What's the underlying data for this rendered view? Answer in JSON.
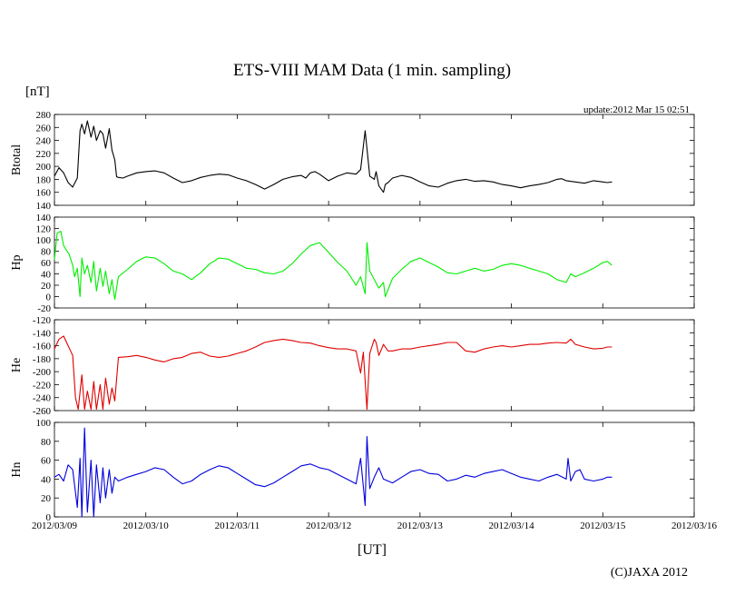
{
  "chart_data": {
    "type": "line",
    "title": "ETS-VIII MAM Data (1 min. sampling)",
    "unit_label": "[nT]",
    "update_label": "update:2012 Mar 15 02:51",
    "xlabel": "[UT]",
    "copyright": "(C)JAXA 2012",
    "x_ticks": [
      "2012/03/09",
      "2012/03/10",
      "2012/03/11",
      "2012/03/12",
      "2012/03/13",
      "2012/03/14",
      "2012/03/15",
      "2012/03/16"
    ],
    "xlim_days": [
      0,
      7
    ],
    "grid": false,
    "panels": [
      {
        "name": "Btotal",
        "ylabel": "Btotal",
        "color": "#000000",
        "ylim": [
          140,
          280
        ],
        "yticks": [
          140,
          160,
          180,
          200,
          220,
          240,
          260,
          280
        ],
        "yticks_reversed": false,
        "x_days": [
          0,
          0.05,
          0.1,
          0.15,
          0.2,
          0.25,
          0.28,
          0.3,
          0.33,
          0.36,
          0.4,
          0.43,
          0.46,
          0.5,
          0.53,
          0.56,
          0.6,
          0.63,
          0.66,
          0.68,
          0.7,
          0.75,
          0.8,
          0.9,
          1.0,
          1.1,
          1.2,
          1.3,
          1.4,
          1.5,
          1.6,
          1.7,
          1.8,
          1.9,
          2.0,
          2.1,
          2.2,
          2.3,
          2.4,
          2.5,
          2.6,
          2.7,
          2.75,
          2.8,
          2.85,
          2.9,
          3.0,
          3.1,
          3.2,
          3.3,
          3.35,
          3.4,
          3.45,
          3.5,
          3.52,
          3.55,
          3.6,
          3.62,
          3.65,
          3.7,
          3.8,
          3.9,
          4.0,
          4.1,
          4.2,
          4.3,
          4.4,
          4.5,
          4.6,
          4.7,
          4.8,
          4.9,
          5.0,
          5.1,
          5.2,
          5.3,
          5.4,
          5.5,
          5.55,
          5.6,
          5.7,
          5.8,
          5.9,
          6.0,
          6.05,
          6.1
        ],
        "values": [
          185,
          198,
          190,
          175,
          168,
          182,
          255,
          265,
          250,
          270,
          245,
          262,
          240,
          255,
          250,
          228,
          258,
          225,
          210,
          184,
          183,
          182,
          185,
          190,
          192,
          193,
          190,
          182,
          175,
          178,
          183,
          186,
          188,
          187,
          182,
          178,
          172,
          165,
          172,
          180,
          184,
          186,
          182,
          190,
          192,
          188,
          178,
          185,
          190,
          188,
          195,
          255,
          185,
          180,
          192,
          170,
          160,
          172,
          175,
          182,
          186,
          183,
          176,
          170,
          168,
          174,
          178,
          180,
          177,
          178,
          176,
          172,
          170,
          167,
          170,
          172,
          175,
          180,
          181,
          178,
          176,
          174,
          178,
          176,
          175,
          176
        ]
      },
      {
        "name": "Hp",
        "ylabel": "Hp",
        "color": "#00ee00",
        "ylim": [
          -20,
          140
        ],
        "yticks": [
          -20,
          0,
          20,
          40,
          60,
          80,
          100,
          120,
          140
        ],
        "yticks_reversed": false,
        "x_days": [
          0,
          0.03,
          0.07,
          0.1,
          0.13,
          0.16,
          0.2,
          0.22,
          0.25,
          0.28,
          0.3,
          0.33,
          0.36,
          0.4,
          0.43,
          0.46,
          0.5,
          0.53,
          0.56,
          0.6,
          0.63,
          0.66,
          0.7,
          0.8,
          0.9,
          1.0,
          1.1,
          1.2,
          1.3,
          1.4,
          1.5,
          1.6,
          1.7,
          1.8,
          1.9,
          2.0,
          2.1,
          2.2,
          2.3,
          2.4,
          2.5,
          2.6,
          2.7,
          2.8,
          2.9,
          3.0,
          3.1,
          3.2,
          3.3,
          3.35,
          3.4,
          3.42,
          3.45,
          3.5,
          3.55,
          3.6,
          3.62,
          3.65,
          3.7,
          3.8,
          3.9,
          4.0,
          4.1,
          4.2,
          4.3,
          4.4,
          4.5,
          4.6,
          4.7,
          4.8,
          4.9,
          5.0,
          5.1,
          5.2,
          5.3,
          5.4,
          5.5,
          5.6,
          5.65,
          5.7,
          5.8,
          5.9,
          6.0,
          6.05,
          6.1
        ],
        "values": [
          65,
          112,
          115,
          90,
          82,
          75,
          55,
          35,
          50,
          0,
          68,
          40,
          55,
          25,
          62,
          10,
          50,
          18,
          45,
          5,
          30,
          -5,
          35,
          48,
          62,
          70,
          68,
          58,
          45,
          40,
          30,
          42,
          58,
          68,
          66,
          58,
          50,
          48,
          42,
          40,
          45,
          58,
          75,
          90,
          95,
          78,
          60,
          45,
          20,
          35,
          5,
          95,
          45,
          30,
          15,
          25,
          0,
          12,
          32,
          48,
          62,
          68,
          60,
          52,
          42,
          40,
          45,
          50,
          45,
          48,
          55,
          58,
          55,
          50,
          45,
          40,
          30,
          25,
          40,
          35,
          42,
          50,
          60,
          62,
          55
        ]
      },
      {
        "name": "He",
        "ylabel": "He",
        "color": "#e00000",
        "ylim": [
          -260,
          -120
        ],
        "yticks": [
          -120,
          -140,
          -160,
          -180,
          -200,
          -220,
          -240,
          -260
        ],
        "yticks_reversed": true,
        "x_days": [
          0,
          0.05,
          0.1,
          0.15,
          0.2,
          0.23,
          0.26,
          0.3,
          0.33,
          0.36,
          0.4,
          0.43,
          0.46,
          0.5,
          0.53,
          0.56,
          0.6,
          0.63,
          0.66,
          0.7,
          0.8,
          0.9,
          1.0,
          1.1,
          1.2,
          1.3,
          1.4,
          1.5,
          1.6,
          1.7,
          1.8,
          1.9,
          2.0,
          2.1,
          2.2,
          2.3,
          2.4,
          2.5,
          2.6,
          2.7,
          2.8,
          2.9,
          3.0,
          3.1,
          3.2,
          3.3,
          3.35,
          3.38,
          3.42,
          3.45,
          3.5,
          3.52,
          3.55,
          3.6,
          3.65,
          3.7,
          3.8,
          3.9,
          4.0,
          4.1,
          4.2,
          4.3,
          4.4,
          4.5,
          4.6,
          4.7,
          4.8,
          4.9,
          5.0,
          5.1,
          5.2,
          5.3,
          5.4,
          5.5,
          5.6,
          5.65,
          5.7,
          5.8,
          5.9,
          6.0,
          6.05,
          6.1
        ],
        "values": [
          -165,
          -150,
          -145,
          -160,
          -175,
          -240,
          -258,
          -205,
          -258,
          -230,
          -258,
          -215,
          -258,
          -220,
          -258,
          -210,
          -250,
          -225,
          -245,
          -178,
          -177,
          -175,
          -178,
          -182,
          -185,
          -180,
          -178,
          -172,
          -170,
          -176,
          -178,
          -176,
          -172,
          -168,
          -162,
          -155,
          -152,
          -150,
          -152,
          -155,
          -156,
          -160,
          -163,
          -165,
          -165,
          -168,
          -202,
          -170,
          -258,
          -172,
          -150,
          -155,
          -175,
          -158,
          -168,
          -168,
          -165,
          -165,
          -162,
          -160,
          -158,
          -155,
          -155,
          -168,
          -170,
          -165,
          -162,
          -160,
          -162,
          -160,
          -158,
          -158,
          -156,
          -155,
          -156,
          -150,
          -158,
          -162,
          -165,
          -164,
          -162,
          -162
        ]
      },
      {
        "name": "Hn",
        "ylabel": "Hn",
        "color": "#0000dd",
        "ylim": [
          0,
          100
        ],
        "yticks": [
          0,
          20,
          40,
          60,
          80,
          100
        ],
        "yticks_reversed": false,
        "x_days": [
          0,
          0.05,
          0.1,
          0.15,
          0.2,
          0.25,
          0.28,
          0.3,
          0.33,
          0.36,
          0.4,
          0.43,
          0.46,
          0.5,
          0.53,
          0.56,
          0.6,
          0.63,
          0.66,
          0.7,
          0.8,
          0.9,
          1.0,
          1.1,
          1.2,
          1.3,
          1.4,
          1.5,
          1.6,
          1.7,
          1.8,
          1.9,
          2.0,
          2.1,
          2.2,
          2.3,
          2.4,
          2.5,
          2.6,
          2.7,
          2.8,
          2.9,
          3.0,
          3.1,
          3.2,
          3.3,
          3.35,
          3.4,
          3.42,
          3.45,
          3.5,
          3.55,
          3.6,
          3.7,
          3.8,
          3.9,
          4.0,
          4.1,
          4.2,
          4.3,
          4.4,
          4.5,
          4.6,
          4.7,
          4.8,
          4.9,
          5.0,
          5.1,
          5.2,
          5.3,
          5.4,
          5.5,
          5.6,
          5.62,
          5.65,
          5.7,
          5.75,
          5.8,
          5.9,
          6.0,
          6.05,
          6.1
        ],
        "values": [
          42,
          45,
          38,
          55,
          50,
          10,
          62,
          0,
          94,
          5,
          60,
          0,
          55,
          15,
          52,
          20,
          50,
          25,
          42,
          38,
          42,
          45,
          48,
          52,
          50,
          42,
          35,
          38,
          45,
          50,
          54,
          52,
          46,
          40,
          34,
          32,
          36,
          42,
          48,
          54,
          56,
          52,
          50,
          45,
          40,
          35,
          62,
          12,
          85,
          30,
          42,
          52,
          40,
          36,
          42,
          48,
          50,
          46,
          45,
          38,
          40,
          44,
          42,
          46,
          48,
          50,
          46,
          42,
          40,
          38,
          42,
          45,
          40,
          62,
          38,
          48,
          50,
          40,
          38,
          40,
          42,
          42
        ]
      }
    ]
  }
}
